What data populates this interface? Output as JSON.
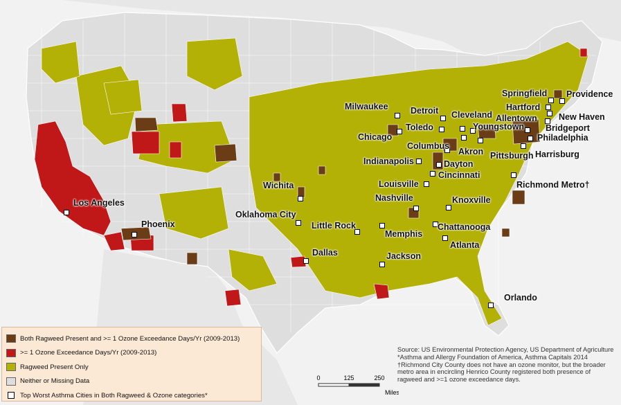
{
  "colors": {
    "both": "#6b3d16",
    "ozone": "#c01818",
    "ragweed": "#b3b006",
    "neither": "#dedede",
    "ocean": "#f2f2f2",
    "land_outside": "#e7e7e7",
    "legend_bg": "#fbe9d6"
  },
  "legend": {
    "items": [
      {
        "label": "Both Ragweed Present and >= 1 Ozone Exceedance Days/Yr (2009-2013)",
        "color": "#6b3d16"
      },
      {
        "label": ">= 1 Ozone Exceedance Days/Yr (2009-2013)",
        "color": "#c01818"
      },
      {
        "label": "Ragweed Present Only",
        "color": "#b3b006"
      },
      {
        "label": "Neither or Missing Data",
        "color": "#dedede"
      }
    ],
    "marker_label": "Top Worst Asthma Cities in Both Ragweed & Ozone categories*"
  },
  "scale": {
    "ticks": [
      "0",
      "125",
      "250"
    ],
    "unit": "Miles"
  },
  "source": {
    "line1": "Source: US Environmental Protection Agency, US Department of Agriculture",
    "line2": "*Asthma and Allergy Foundation of America, Asthma Capitals 2014",
    "line3": "†Richmond City County does not have an ozone monitor, but the broader metro area in encircling Henrico County registered both presence of ragweed and >=1 ozone exceedance days."
  },
  "cities": [
    {
      "name": "Los Angeles"
    },
    {
      "name": "Phoenix"
    },
    {
      "name": "Wichita"
    },
    {
      "name": "Oklahoma City"
    },
    {
      "name": "Little Rock"
    },
    {
      "name": "Dallas"
    },
    {
      "name": "Memphis"
    },
    {
      "name": "Jackson"
    },
    {
      "name": "Milwaukee"
    },
    {
      "name": "Chicago"
    },
    {
      "name": "Indianapolis"
    },
    {
      "name": "Louisville"
    },
    {
      "name": "Nashville"
    },
    {
      "name": "Detroit"
    },
    {
      "name": "Toledo"
    },
    {
      "name": "Cleveland"
    },
    {
      "name": "Columbus"
    },
    {
      "name": "Akron"
    },
    {
      "name": "Youngstown"
    },
    {
      "name": "Dayton"
    },
    {
      "name": "Cincinnati"
    },
    {
      "name": "Pittsburgh"
    },
    {
      "name": "Knoxville"
    },
    {
      "name": "Chattanooga"
    },
    {
      "name": "Atlanta"
    },
    {
      "name": "Orlando"
    },
    {
      "name": "Richmond Metro†"
    },
    {
      "name": "Harrisburg"
    },
    {
      "name": "Philadelphia"
    },
    {
      "name": "Allentown"
    },
    {
      "name": "Bridgeport"
    },
    {
      "name": "New Haven"
    },
    {
      "name": "Hartford"
    },
    {
      "name": "Springfield"
    },
    {
      "name": "Providence"
    }
  ]
}
